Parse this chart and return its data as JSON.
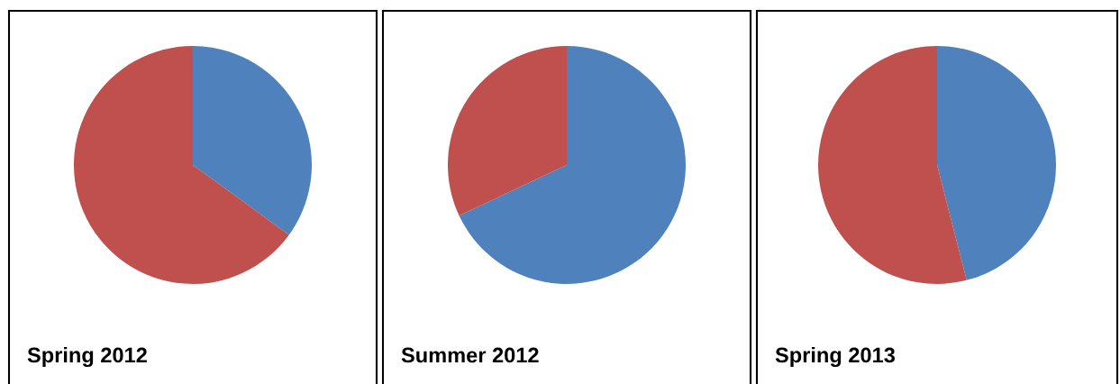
{
  "chart_data": [
    {
      "type": "pie",
      "title": "Spring 2012",
      "categories": [
        null,
        null
      ],
      "values": [
        35,
        65
      ],
      "colors": [
        "#4f81bd",
        "#c0504d"
      ]
    },
    {
      "type": "pie",
      "title": "Summer 2012",
      "categories": [
        null,
        null
      ],
      "values": [
        68,
        32
      ],
      "colors": [
        "#4f81bd",
        "#c0504d"
      ]
    },
    {
      "type": "pie",
      "title": "Spring 2013",
      "categories": [
        null,
        null
      ],
      "values": [
        46,
        54
      ],
      "colors": [
        "#4f81bd",
        "#c0504d"
      ]
    }
  ]
}
